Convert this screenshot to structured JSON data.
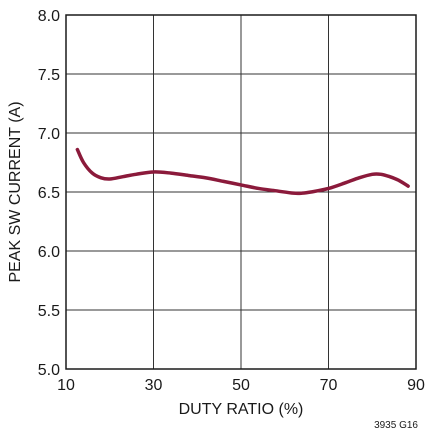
{
  "chart_data": {
    "type": "line",
    "title": "",
    "xlabel": "DUTY RATIO (%)",
    "ylabel": "PEAK SW CURRENT (A)",
    "xlim": [
      10,
      90
    ],
    "ylim": [
      5.0,
      8.0
    ],
    "x_ticks": [
      10,
      30,
      50,
      70,
      90
    ],
    "x_tick_labels": [
      "10",
      "30",
      "50",
      "70",
      "90"
    ],
    "y_ticks": [
      5.0,
      5.5,
      6.0,
      6.5,
      7.0,
      7.5,
      8.0
    ],
    "y_tick_labels": [
      "5.0",
      "5.5",
      "6.0",
      "6.5",
      "7.0",
      "7.5",
      "8.0"
    ],
    "grid": true,
    "legend": "none",
    "series": [
      {
        "color": "#8b1a3b",
        "x": [
          12.6,
          14,
          16,
          18,
          20,
          23,
          26,
          30,
          34,
          38,
          42,
          46,
          50,
          54,
          58,
          62,
          64,
          66,
          70,
          74,
          77,
          80,
          82,
          84,
          86,
          88.2
        ],
        "y": [
          6.86,
          6.75,
          6.66,
          6.62,
          6.61,
          6.63,
          6.65,
          6.67,
          6.66,
          6.64,
          6.62,
          6.59,
          6.56,
          6.53,
          6.51,
          6.49,
          6.49,
          6.5,
          6.53,
          6.58,
          6.62,
          6.65,
          6.65,
          6.63,
          6.6,
          6.55
        ]
      }
    ],
    "figure_id": "3935 G16"
  }
}
